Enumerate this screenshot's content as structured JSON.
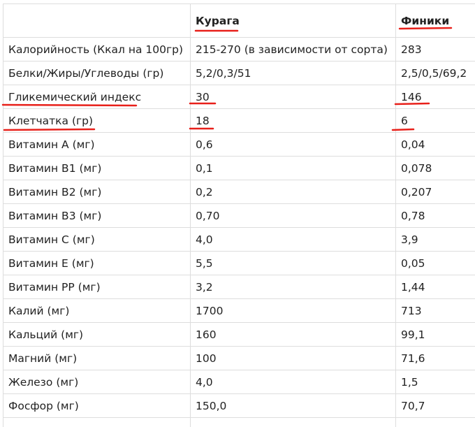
{
  "table": {
    "headers": [
      "Курага",
      "Финики"
    ],
    "rows": [
      [
        "Калорийность (Ккал на 100гр)",
        "215-270 (в зависимости от сорта)",
        "283"
      ],
      [
        "Белки/Жиры/Углеводы (гр)",
        "5,2/0,3/51",
        "2,5/0,5/69,2"
      ],
      [
        "Гликемический индекс",
        "30",
        "146"
      ],
      [
        "Клетчатка (гр)",
        "18",
        "6"
      ],
      [
        "Витамин A (мг)",
        "0,6",
        "0,04"
      ],
      [
        "Витамин B1 (мг)",
        "0,1",
        "0,078"
      ],
      [
        "Витамин B2 (мг)",
        "0,2",
        "0,207"
      ],
      [
        "Витамин B3 (мг)",
        "0,70",
        "0,78"
      ],
      [
        "Витамин C (мг)",
        "4,0",
        "3,9"
      ],
      [
        "Витамин E (мг)",
        "5,5",
        "0,05"
      ],
      [
        "Витамин PP (мг)",
        "3,2",
        "1,44"
      ],
      [
        "Калий (мг)",
        "1700",
        "713"
      ],
      [
        "Кальций (мг)",
        "160",
        "99,1"
      ],
      [
        "Магний (мг)",
        "100",
        "71,6"
      ],
      [
        "Железо (мг)",
        "4,0",
        "1,5"
      ],
      [
        "Фосфор (мг)",
        "150,0",
        "70,7"
      ]
    ]
  }
}
